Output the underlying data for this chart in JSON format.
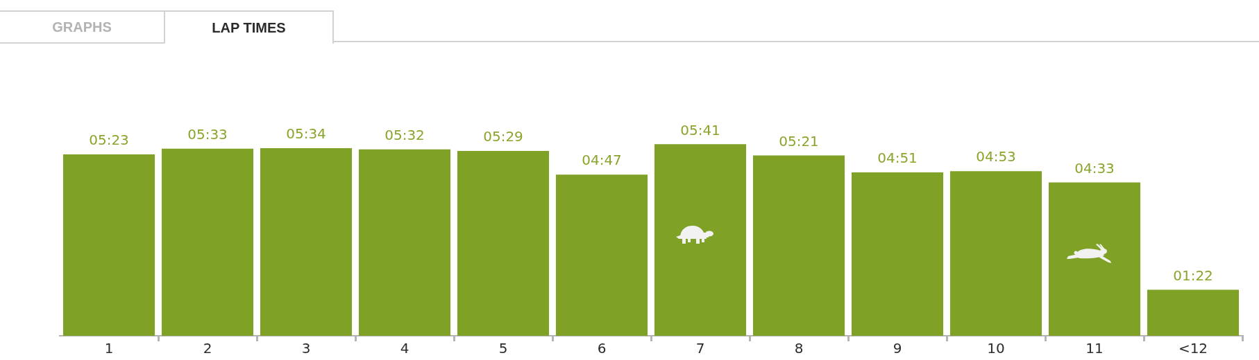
{
  "chart_data": {
    "type": "bar",
    "title": "LAP TIMES",
    "annotations": [
      "GRAPHS"
    ],
    "categories": [
      "1",
      "2",
      "3",
      "4",
      "5",
      "6",
      "7",
      "8",
      "9",
      "10",
      "11",
      "<12"
    ],
    "values": [
      323,
      333,
      334,
      332,
      329,
      287,
      341,
      321,
      291,
      293,
      273,
      82
    ],
    "value_labels": [
      "05:23",
      "05:33",
      "05:34",
      "05:32",
      "05:29",
      "04:47",
      "05:41",
      "05:21",
      "04:51",
      "04:53",
      "04:33",
      "01:22"
    ],
    "color": "#7fa226"
  }
}
